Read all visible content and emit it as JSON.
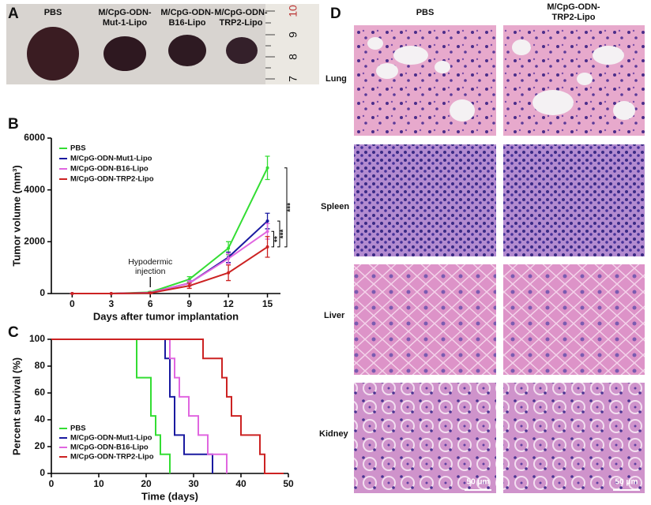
{
  "panels": [
    "A",
    "B",
    "C",
    "D"
  ],
  "photo": {
    "labels": [
      [
        "PBS"
      ],
      [
        "M/CpG-ODN-",
        "Mut-1-Lipo"
      ],
      [
        "M/CpG-ODN-",
        "B16-Lipo"
      ],
      [
        "M/CpG-ODN-",
        "TRP2-Lipo"
      ]
    ],
    "ruler": [
      "10",
      "9",
      "8",
      "7"
    ]
  },
  "histology": {
    "columns": [
      [
        "PBS"
      ],
      [
        "M/CpG-ODN-",
        "TRP2-Lipo"
      ]
    ],
    "rows": [
      "Lung",
      "Spleen",
      "Liver",
      "Kidney"
    ],
    "scale_bar": "50 μm"
  },
  "chart_data": [
    {
      "type": "line",
      "xlabel": "Days after tumor implantation",
      "ylabel": "Tumor volume (mm³)",
      "x": [
        0,
        3,
        6,
        9,
        12,
        15
      ],
      "xlim": [
        -1.6,
        16
      ],
      "xticks": [
        0,
        3,
        6,
        9,
        12,
        15
      ],
      "ylim": [
        0,
        6000
      ],
      "yticks": [
        0,
        2000,
        4000,
        6000
      ],
      "legend": "upper left",
      "series": [
        {
          "name": "PBS",
          "color": "#33dd33",
          "values": [
            0,
            0,
            50,
            550,
            1750,
            4850
          ],
          "errors": [
            0,
            0,
            30,
            100,
            250,
            450
          ]
        },
        {
          "name": "M/CpG-ODN-Mut1-Lipo",
          "color": "#1a1aa0",
          "values": [
            0,
            0,
            30,
            400,
            1400,
            2800
          ],
          "errors": [
            0,
            0,
            20,
            100,
            200,
            300
          ]
        },
        {
          "name": "M/CpG-ODN-B16-Lipo",
          "color": "#e066e0",
          "values": [
            0,
            0,
            30,
            400,
            1350,
            2400
          ],
          "errors": [
            0,
            0,
            20,
            100,
            200,
            300
          ]
        },
        {
          "name": "M/CpG-ODN-TRP2-Lipo",
          "color": "#cc2222",
          "values": [
            0,
            0,
            20,
            300,
            800,
            1800
          ],
          "errors": [
            0,
            0,
            20,
            100,
            300,
            400
          ]
        }
      ],
      "annotations": [
        "Hypodermic",
        "injection",
        "**",
        "***",
        "***"
      ]
    },
    {
      "type": "step",
      "xlabel": "Time (days)",
      "ylabel": "Percent survival (%)",
      "xlim": [
        0,
        50
      ],
      "xticks": [
        0,
        10,
        20,
        30,
        40,
        50
      ],
      "ylim": [
        0,
        100
      ],
      "yticks": [
        0,
        20,
        40,
        60,
        80,
        100
      ],
      "legend": "lower left",
      "series": [
        {
          "name": "PBS",
          "color": "#33dd33",
          "x": [
            0,
            18,
            21,
            22,
            23,
            25
          ],
          "values": [
            100,
            71.4,
            42.9,
            28.6,
            14.3,
            0
          ]
        },
        {
          "name": "M/CpG-ODN-Mut1-Lipo",
          "color": "#1a1aa0",
          "x": [
            0,
            24,
            25,
            26,
            28,
            34
          ],
          "values": [
            100,
            85.7,
            57.1,
            28.6,
            14.3,
            0
          ]
        },
        {
          "name": "M/CpG-ODN-B16-Lipo",
          "color": "#e066e0",
          "x": [
            0,
            25,
            26,
            27,
            29,
            31,
            33,
            37
          ],
          "values": [
            100,
            85.7,
            71.4,
            57.1,
            42.9,
            28.6,
            14.3,
            0
          ]
        },
        {
          "name": "M/CpG-ODN-TRP2-Lipo",
          "color": "#cc2222",
          "x": [
            0,
            32,
            36,
            37,
            38,
            40,
            44,
            45,
            49
          ],
          "values": [
            100,
            85.7,
            71.4,
            57.1,
            42.9,
            28.6,
            14.3,
            0,
            0
          ]
        }
      ]
    }
  ]
}
